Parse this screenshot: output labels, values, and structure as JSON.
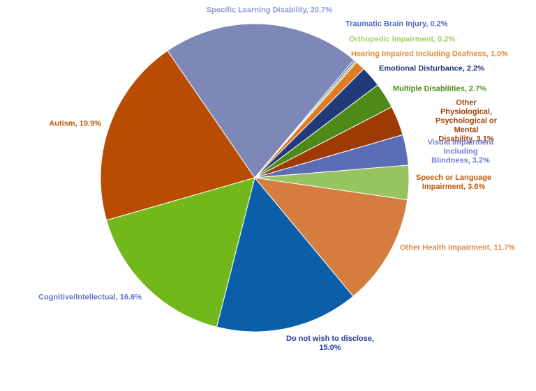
{
  "chart_data": {
    "type": "pie",
    "values": [
      0.2,
      0.2,
      1.0,
      2.2,
      2.7,
      3.1,
      3.2,
      3.6,
      11.7,
      15.0,
      16.6,
      19.9,
      20.7
    ],
    "value_labels": [
      "Traumatic Brain Injury, 0.2%",
      "Orthopedic Impairment, 0.2%",
      "Hearing Impaired Including Deafness, 1.0%",
      "Emotional Disturbance, 2.2%",
      "Multiple Disabilities, 2.7%",
      "Other Physiological,\nPsychological or Mental\nDisability, 3.1%",
      "Visual Impairment Including\nBlindness, 3.2%",
      "Speech or Language\nImpairment, 3.6%",
      "Other Health Impairment, 11.7%",
      "Do not wish to disclose,\n15.0%",
      "Cognitive/Intellectual, 16.6%",
      "Autism, 19.9%",
      "Specific Learning Disability, 20.7%"
    ],
    "colors": [
      "#4a6fc0",
      "#9bc85a",
      "#e07b25",
      "#233a7a",
      "#4e8a17",
      "#9e3b05",
      "#5b6db5",
      "#97c45e",
      "#d47d3f",
      "#0b5ea8",
      "#72b81b",
      "#b84c00",
      "#7d88b8"
    ],
    "label_colors": [
      "#4f6fc4",
      "#a3d35e",
      "#e68a34",
      "#1f3673",
      "#4f8f12",
      "#a1400a",
      "#6c7fcf",
      "#c05a0c",
      "#e08a47",
      "#1f3b9c",
      "#6478c6",
      "#c25208",
      "#8e9bd6"
    ]
  }
}
